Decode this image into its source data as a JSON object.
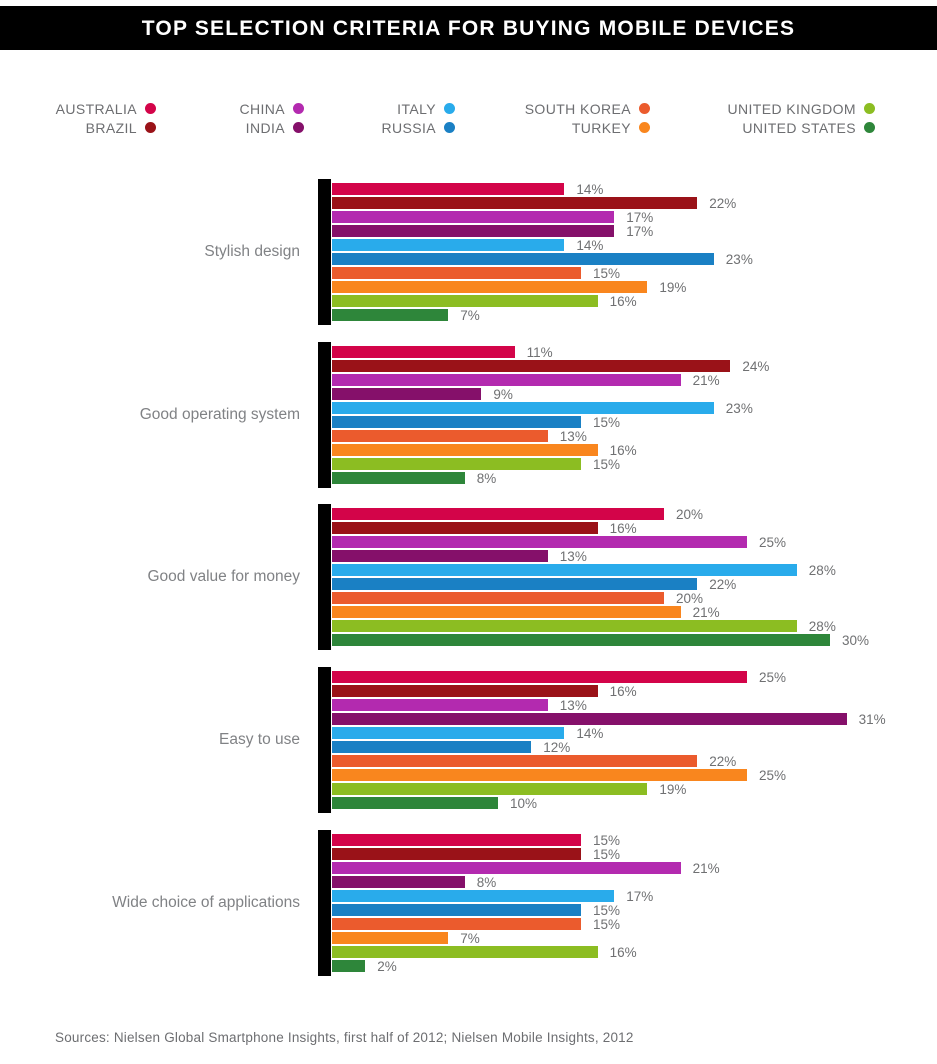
{
  "title": "TOP SELECTION CRITERIA FOR BUYING MOBILE DEVICES",
  "footer": {
    "sources": "Sources: Nielsen Global Smartphone Insights, first half of 2012; Nielsen Mobile Insights, 2012"
  },
  "colors": {
    "title_bar_bg": "#000000",
    "title_text": "#FFFFFF",
    "axis_bar": "#000000",
    "legend_text": "#6D6E71",
    "category_label_text": "#808285",
    "value_label_text": "#6F7072"
  },
  "chart_data": {
    "type": "bar",
    "orientation": "horizontal",
    "unit": "%",
    "value_label_format": "{value}%",
    "xlim": [
      0,
      31
    ],
    "grid": false,
    "legend_position": "top",
    "title": "TOP SELECTION CRITERIA FOR BUYING MOBILE DEVICES",
    "categories": [
      "Stylish design",
      "Good operating system",
      "Good value for money",
      "Easy to use",
      "Wide choice of applications"
    ],
    "series": [
      {
        "name": "Australia",
        "legend_label": "AUSTRALIA",
        "color": "#D30449",
        "values": [
          14,
          11,
          20,
          25,
          15
        ]
      },
      {
        "name": "Brazil",
        "legend_label": "BRAZIL",
        "color": "#9A1218",
        "values": [
          22,
          24,
          16,
          16,
          15
        ]
      },
      {
        "name": "China",
        "legend_label": "CHINA",
        "color": "#B32AAF",
        "values": [
          17,
          21,
          25,
          13,
          21
        ]
      },
      {
        "name": "India",
        "legend_label": "INDIA",
        "color": "#85106A",
        "values": [
          17,
          9,
          13,
          31,
          8
        ]
      },
      {
        "name": "Italy",
        "legend_label": "ITALY",
        "color": "#29ABEB",
        "values": [
          14,
          23,
          28,
          14,
          17
        ]
      },
      {
        "name": "Russia",
        "legend_label": "RUSSIA",
        "color": "#1A80C4",
        "values": [
          23,
          15,
          22,
          12,
          15
        ]
      },
      {
        "name": "South Korea",
        "legend_label": "SOUTH KOREA",
        "color": "#EB5B2D",
        "values": [
          15,
          13,
          20,
          22,
          15
        ]
      },
      {
        "name": "Turkey",
        "legend_label": "TURKEY",
        "color": "#F9861E",
        "values": [
          19,
          16,
          21,
          25,
          7
        ]
      },
      {
        "name": "United Kingdom",
        "legend_label": "UNITED KINGDOM",
        "color": "#8CBD22",
        "values": [
          16,
          15,
          28,
          19,
          16
        ]
      },
      {
        "name": "United States",
        "legend_label": "UNITED STATES",
        "color": "#2E863A",
        "values": [
          7,
          8,
          30,
          10,
          2
        ]
      }
    ]
  }
}
